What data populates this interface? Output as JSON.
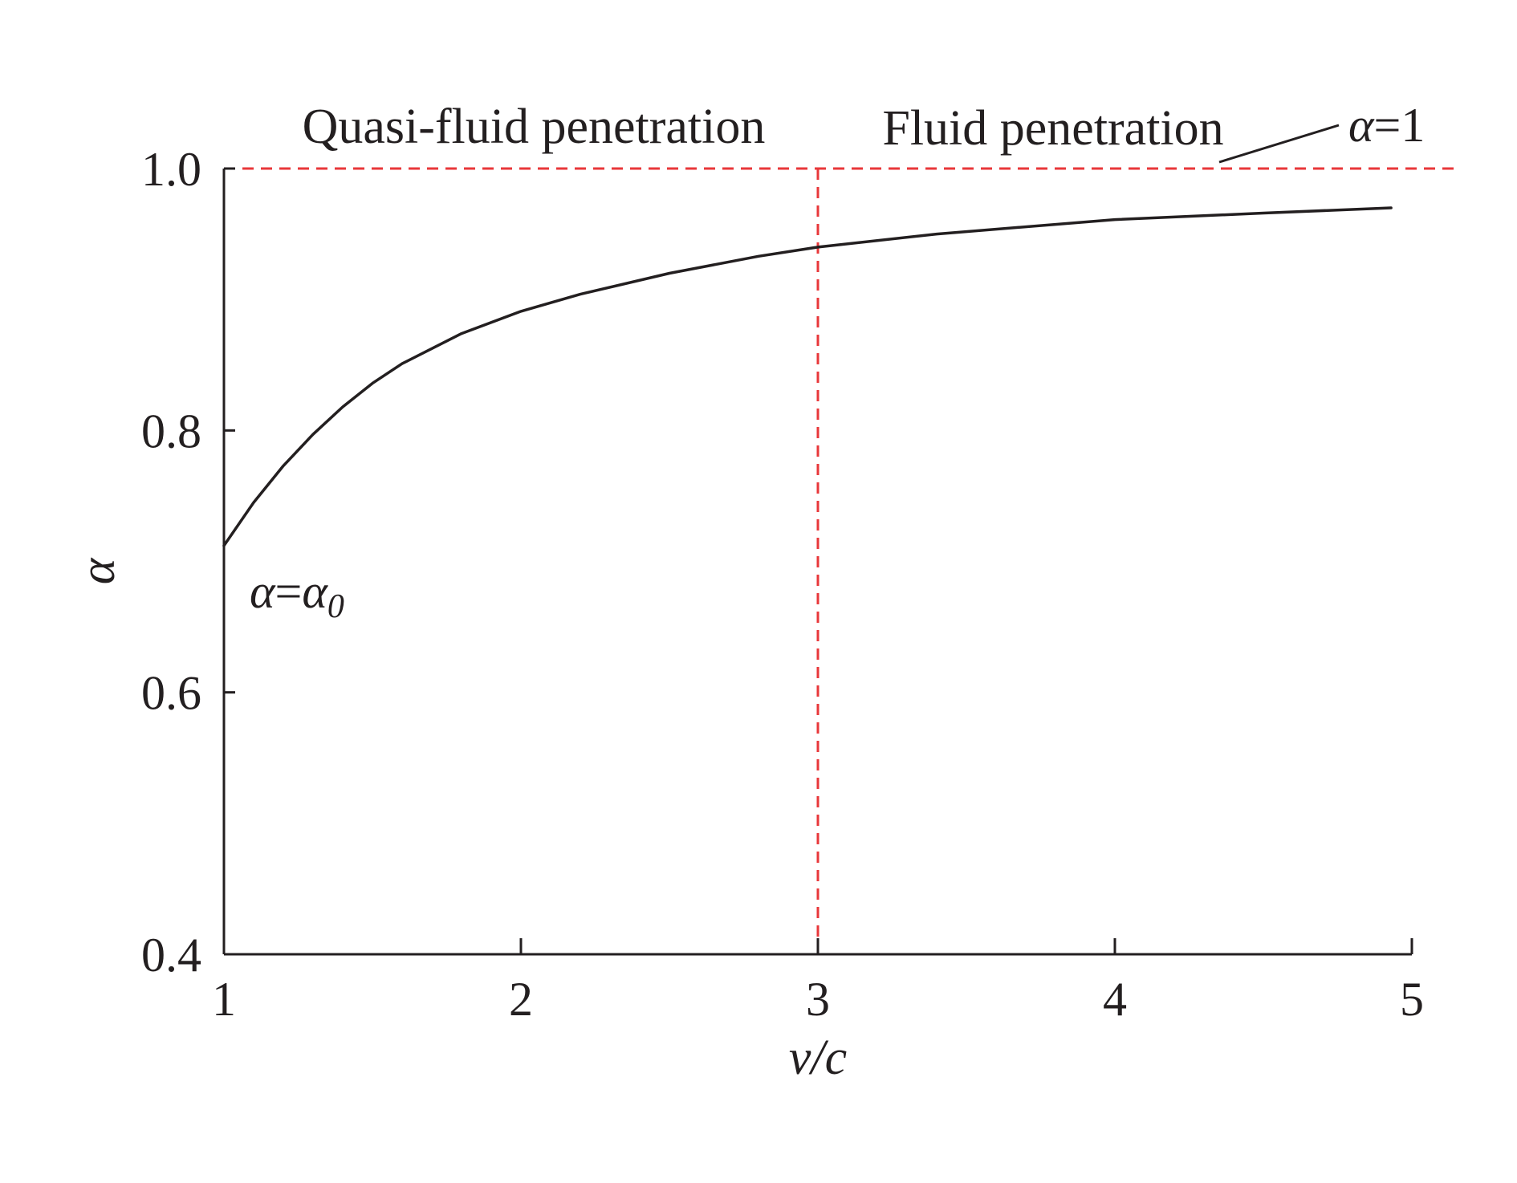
{
  "chart_data": {
    "type": "line",
    "xlabel": "v/c",
    "ylabel": "α",
    "xlim": [
      1,
      5
    ],
    "ylim": [
      0.4,
      1.0
    ],
    "xticks": [
      1,
      2,
      3,
      4,
      5
    ],
    "yticks": [
      0.4,
      0.6,
      0.8,
      1.0
    ],
    "xtick_labels": [
      "1",
      "2",
      "3",
      "4",
      "5"
    ],
    "ytick_labels": [
      "0.4",
      "0.6",
      "0.8",
      "1.0"
    ],
    "grid": false,
    "series": [
      {
        "color": "#231f20",
        "x": [
          1.0,
          1.1,
          1.2,
          1.3,
          1.4,
          1.5,
          1.6,
          1.8,
          2.0,
          2.2,
          2.5,
          2.8,
          3.0,
          3.4,
          4.0,
          4.5,
          4.93
        ],
        "y": [
          0.712,
          0.745,
          0.773,
          0.797,
          0.818,
          0.836,
          0.851,
          0.874,
          0.891,
          0.904,
          0.92,
          0.933,
          0.94,
          0.95,
          0.961,
          0.966,
          0.97
        ]
      }
    ],
    "reference_lines": [
      {
        "orientation": "horizontal",
        "value": 1.0,
        "style": "dashed",
        "color": "#e8373a"
      },
      {
        "orientation": "vertical",
        "value": 3.0,
        "style": "dashed",
        "color": "#e8373a"
      }
    ],
    "region_labels": [
      "Quasi-fluid penetration",
      "Fluid penetration"
    ],
    "annotations": {
      "upper": {
        "symbol": "α",
        "text": "=1"
      },
      "lower": {
        "symbol": "α",
        "eq": "=",
        "symbol2": "α",
        "subscript": "0"
      }
    }
  }
}
